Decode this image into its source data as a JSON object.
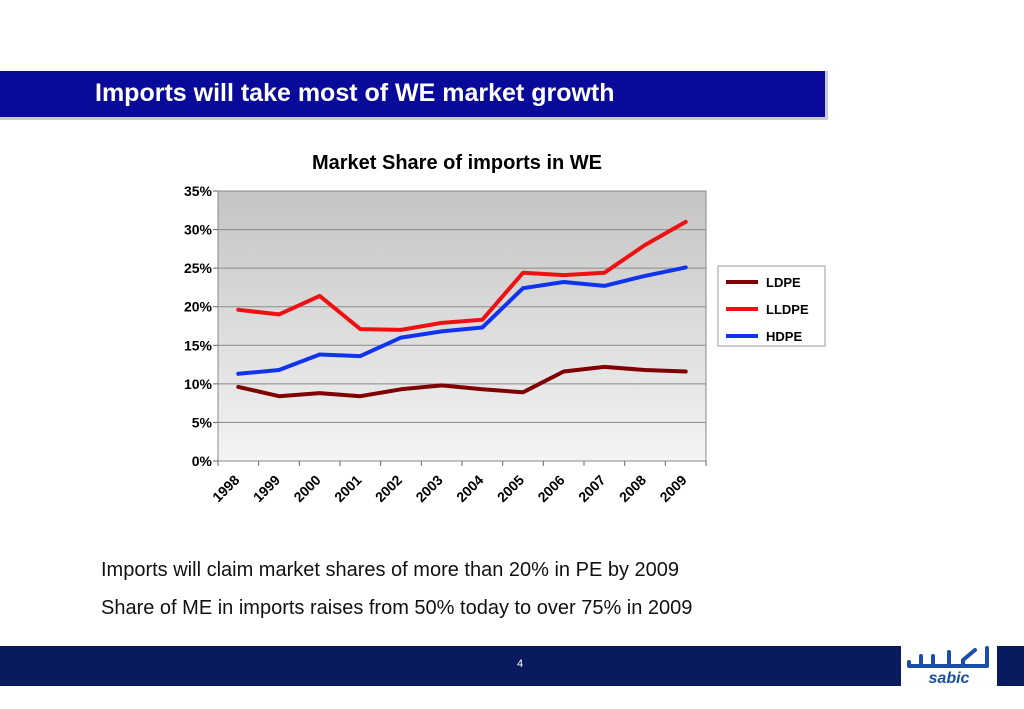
{
  "slide": {
    "heading": "Imports will take most of WE market growth",
    "bullets": [
      "Imports will claim market shares of more than 20% in PE by 2009",
      "Share of ME in imports raises from 50% today to over 75% in 2009"
    ],
    "page_number": "4",
    "logo_text": "sabic",
    "colors": {
      "title_bar": "#0a0a9a",
      "footer": "#0a1a5e",
      "logo": "#1b4ea8"
    }
  },
  "chart_data": {
    "type": "line",
    "title": "Market Share of imports in WE",
    "categories": [
      "1998",
      "1999",
      "2000",
      "2001",
      "2002",
      "2003",
      "2004",
      "2005",
      "2006",
      "2007",
      "2008",
      "2009"
    ],
    "y_tick_labels": [
      "0%",
      "5%",
      "10%",
      "15%",
      "20%",
      "25%",
      "30%",
      "35%"
    ],
    "ylim": [
      0,
      35
    ],
    "y_unit": "%",
    "grid": true,
    "legend_position": "right",
    "series": [
      {
        "name": "LDPE",
        "color": "#800000",
        "values": [
          9.6,
          8.4,
          8.8,
          8.4,
          9.3,
          9.8,
          9.3,
          8.9,
          11.6,
          12.2,
          11.8,
          11.6
        ]
      },
      {
        "name": "LLDPE",
        "color": "#ee1111",
        "values": [
          19.6,
          19.0,
          21.4,
          17.1,
          17.0,
          17.9,
          18.3,
          24.4,
          24.1,
          24.4,
          28.0,
          31.0
        ]
      },
      {
        "name": "HDPE",
        "color": "#1133ee",
        "values": [
          11.3,
          11.8,
          13.8,
          13.6,
          16.0,
          16.8,
          17.3,
          22.4,
          23.2,
          22.7,
          24.0,
          25.1
        ]
      }
    ]
  }
}
